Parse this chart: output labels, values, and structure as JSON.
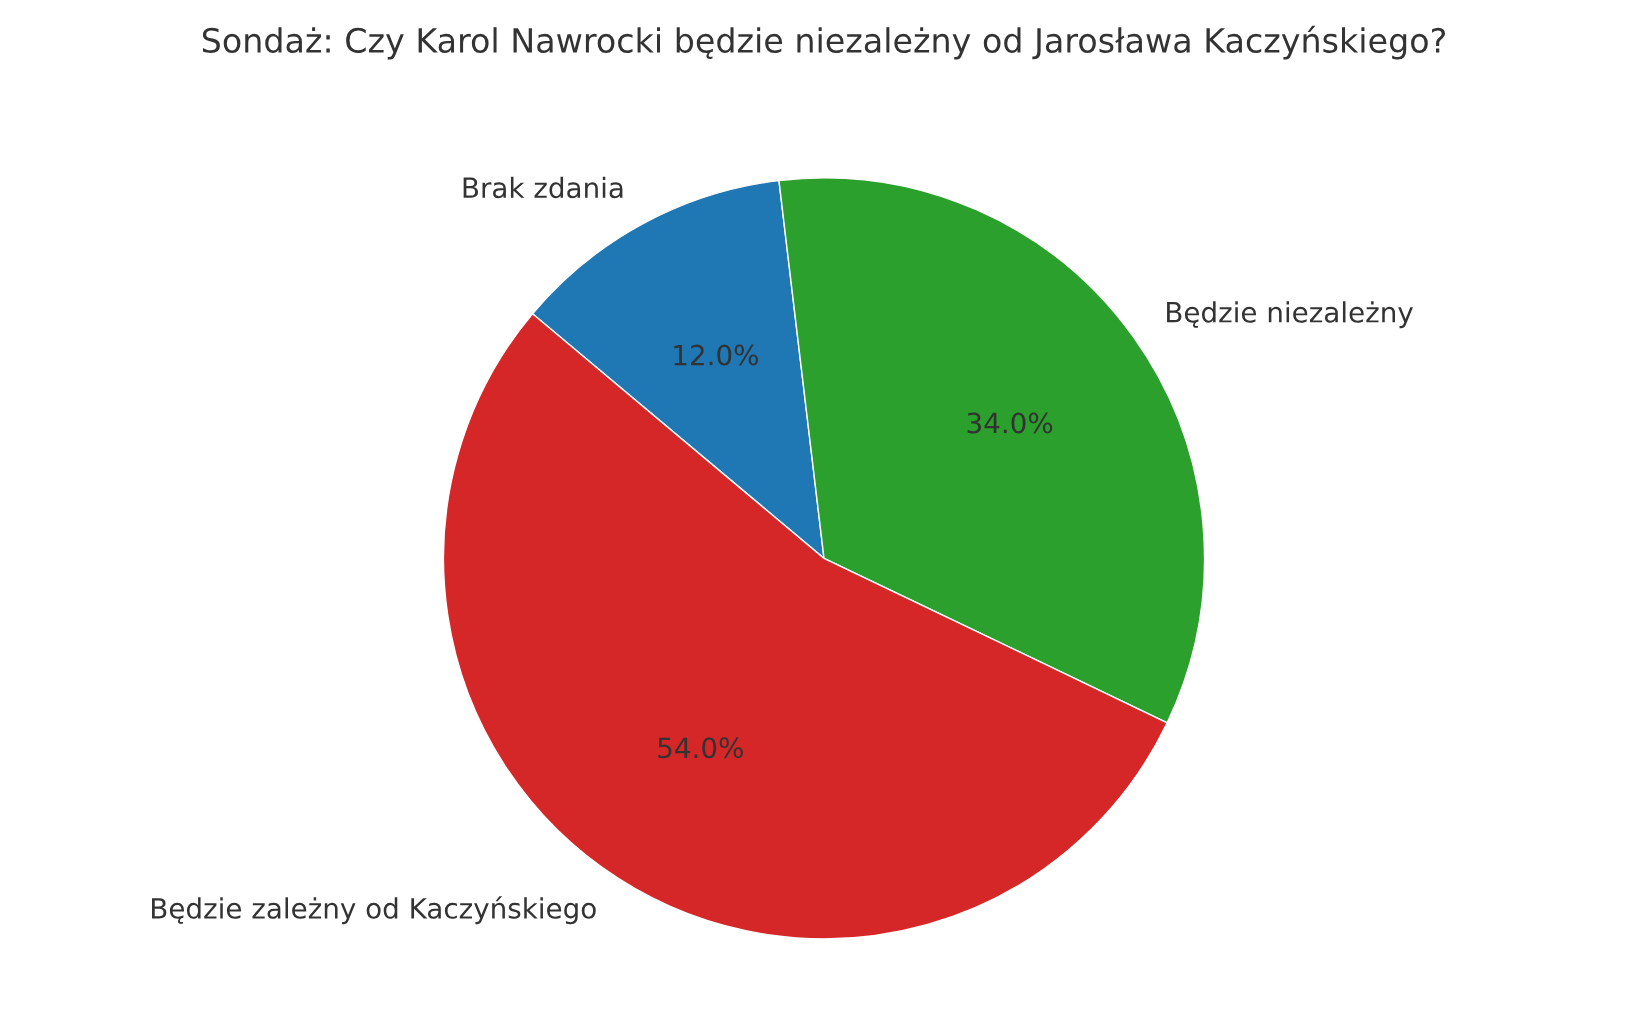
{
  "chart_data": {
    "type": "pie",
    "title": "Sondaż: Czy Karol Nawrocki będzie niezależny od Jarosława Kaczyńskiego?",
    "categories": [
      "Brak zdania",
      "Będzie niezależny",
      "Będzie zależny od Kaczyńskiego"
    ],
    "values": [
      12,
      34,
      54
    ],
    "colors": [
      "#1f77b4",
      "#2ca02c",
      "#d62728"
    ],
    "value_labels": [
      "12.0%",
      "34.0%",
      "54.0%"
    ]
  }
}
